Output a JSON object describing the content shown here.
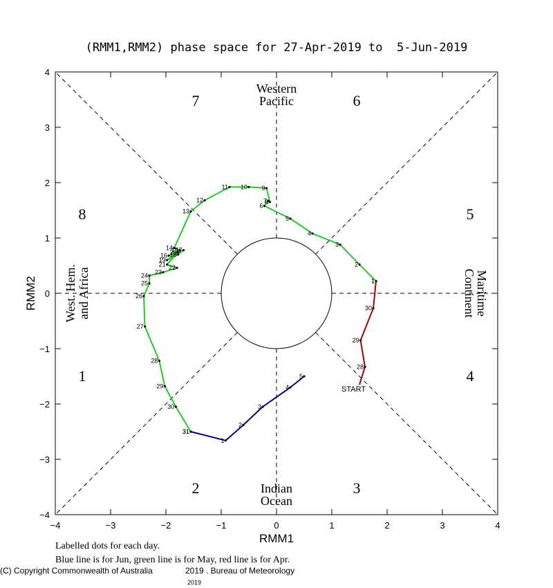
{
  "chart_data": {
    "type": "line",
    "title": "(RMM1,RMM2) phase space for 27-Apr-2019 to  5-Jun-2019",
    "xlabel": "RMM1",
    "ylabel": "RMM2",
    "xlim": [
      -4,
      4
    ],
    "ylim": [
      -4,
      4
    ],
    "x_ticks": [
      "−4",
      "−3",
      "−2",
      "−1",
      "0",
      "1",
      "2",
      "3",
      "4"
    ],
    "y_ticks": [
      "−4",
      "−3",
      "−2",
      "−1",
      "0",
      "1",
      "2",
      "3",
      "4"
    ],
    "phases": [
      "1",
      "2",
      "3",
      "4",
      "5",
      "6",
      "7",
      "8"
    ],
    "regions": {
      "top": [
        "Western",
        "Pacific"
      ],
      "bottom": [
        "Indian",
        "Ocean"
      ],
      "right": [
        "Maritime",
        "Continent"
      ],
      "left": [
        "West. Hem.",
        "and Africa"
      ]
    },
    "start_label": "START",
    "series": [
      {
        "color": "#aa0000",
        "points": [
          {
            "day": "",
            "x": 1.5,
            "y": -1.65
          },
          {
            "day": "28",
            "x": 1.6,
            "y": -1.33
          },
          {
            "day": "29",
            "x": 1.52,
            "y": -0.85
          },
          {
            "day": "30",
            "x": 1.75,
            "y": -0.27
          },
          {
            "day": "1",
            "x": 1.8,
            "y": 0.22
          }
        ]
      },
      {
        "color": "#22cc22",
        "points": [
          {
            "day": "1",
            "x": 1.8,
            "y": 0.22
          },
          {
            "day": "2",
            "x": 1.5,
            "y": 0.52
          },
          {
            "day": "3",
            "x": 1.15,
            "y": 0.88
          },
          {
            "day": "4",
            "x": 0.65,
            "y": 1.08
          },
          {
            "day": "5",
            "x": 0.25,
            "y": 1.35
          },
          {
            "day": "6",
            "x": -0.22,
            "y": 1.58
          },
          {
            "day": "7",
            "x": -0.15,
            "y": 1.67
          },
          {
            "day": "8",
            "x": -0.12,
            "y": 1.65
          },
          {
            "day": "9",
            "x": -0.18,
            "y": 1.9
          },
          {
            "day": "10",
            "x": -0.5,
            "y": 1.92
          },
          {
            "day": "11",
            "x": -0.85,
            "y": 1.92
          },
          {
            "day": "12",
            "x": -1.3,
            "y": 1.68
          },
          {
            "day": "13",
            "x": -1.55,
            "y": 1.48
          },
          {
            "day": "14",
            "x": -1.85,
            "y": 0.82
          },
          {
            "day": "15",
            "x": -1.75,
            "y": 0.78
          },
          {
            "day": "16",
            "x": -1.95,
            "y": 0.68
          },
          {
            "day": "17",
            "x": -1.68,
            "y": 0.78
          },
          {
            "day": "18",
            "x": -1.78,
            "y": 0.7
          },
          {
            "day": "19",
            "x": -1.98,
            "y": 0.6
          },
          {
            "day": "20",
            "x": -1.78,
            "y": 0.74
          },
          {
            "day": "21",
            "x": -1.98,
            "y": 0.52
          },
          {
            "day": "22",
            "x": -1.8,
            "y": 0.46
          },
          {
            "day": "23",
            "x": -2.05,
            "y": 0.38
          },
          {
            "day": "24",
            "x": -2.3,
            "y": 0.32
          },
          {
            "day": "25",
            "x": -2.3,
            "y": 0.18
          },
          {
            "day": "26",
            "x": -2.4,
            "y": -0.05
          },
          {
            "day": "27",
            "x": -2.38,
            "y": -0.6
          },
          {
            "day": "28",
            "x": -2.12,
            "y": -1.22
          },
          {
            "day": "29",
            "x": -2.02,
            "y": -1.68
          },
          {
            "day": "30",
            "x": -1.82,
            "y": -2.05
          },
          {
            "day": "31",
            "x": -1.55,
            "y": -2.5
          }
        ]
      },
      {
        "color": "#000099",
        "points": [
          {
            "day": "31",
            "x": -1.55,
            "y": -2.5
          },
          {
            "day": "1",
            "x": -0.92,
            "y": -2.66
          },
          {
            "day": "2",
            "x": -0.6,
            "y": -2.38
          },
          {
            "day": "3",
            "x": -0.25,
            "y": -2.05
          },
          {
            "day": "4",
            "x": 0.25,
            "y": -1.7
          },
          {
            "day": "5",
            "x": 0.5,
            "y": -1.5
          }
        ]
      }
    ],
    "notes": [
      "Labelled dots for each day.",
      "Blue line is for Jun, green line is for May, red line is for Apr."
    ]
  },
  "footer": {
    "copyright": "(C) Copyright Commonwealth of Australia",
    "year_inline": "2019",
    "bureau": ". Bureau of Meteorology",
    "year_below": "2019"
  }
}
